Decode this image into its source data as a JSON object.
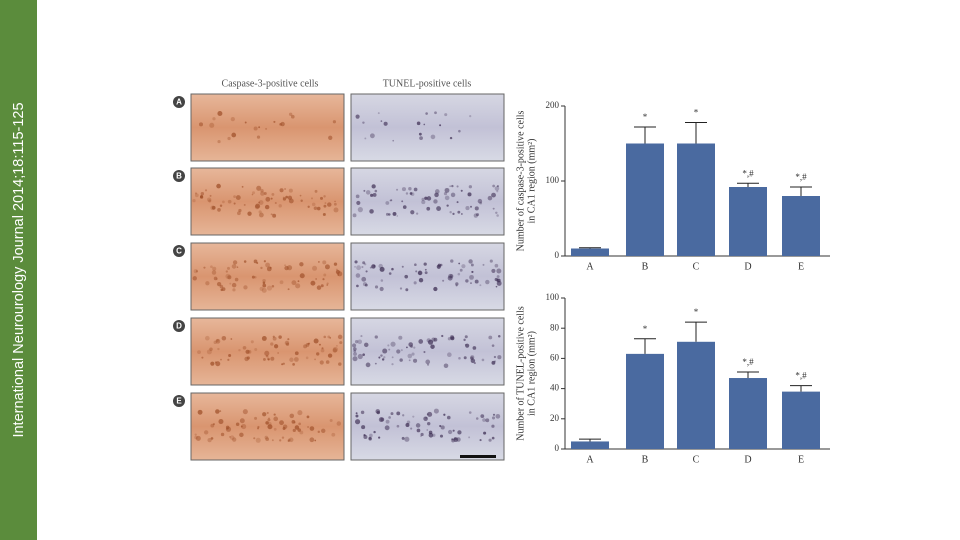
{
  "sidebar": {
    "text": "International Neurourology Journal 2014;18:115-125"
  },
  "figure": {
    "column_headers": [
      "Caspase-3-positive cells",
      "TUNEL-positive cells"
    ],
    "panel_letters": [
      "A",
      "B",
      "C",
      "D",
      "E"
    ]
  },
  "chart_data": [
    {
      "type": "bar",
      "ylabel_lines": [
        "Number of caspase-3-positive cells",
        "in CA1 region (mm²)"
      ],
      "categories": [
        "A",
        "B",
        "C",
        "D",
        "E"
      ],
      "values": [
        10,
        150,
        150,
        92,
        80
      ],
      "errors": [
        1,
        22,
        28,
        5,
        12
      ],
      "annotations": [
        null,
        "*",
        "*",
        "*,#",
        "*,#"
      ],
      "color": "#4a6aa0",
      "ylim": [
        0,
        200
      ],
      "yticks": [
        0,
        100,
        200
      ]
    },
    {
      "type": "bar",
      "ylabel_lines": [
        "Number of TUNEL-positive cells",
        "in CA1 region (mm²)"
      ],
      "categories": [
        "A",
        "B",
        "C",
        "D",
        "E"
      ],
      "values": [
        5,
        63,
        71,
        47,
        38
      ],
      "errors": [
        1.5,
        10,
        13,
        4,
        4
      ],
      "annotations": [
        null,
        "*",
        "*",
        "*,#",
        "*,#"
      ],
      "color": "#4a6aa0",
      "ylim": [
        0,
        100
      ],
      "yticks": [
        0,
        20,
        40,
        60,
        80,
        100
      ]
    }
  ]
}
